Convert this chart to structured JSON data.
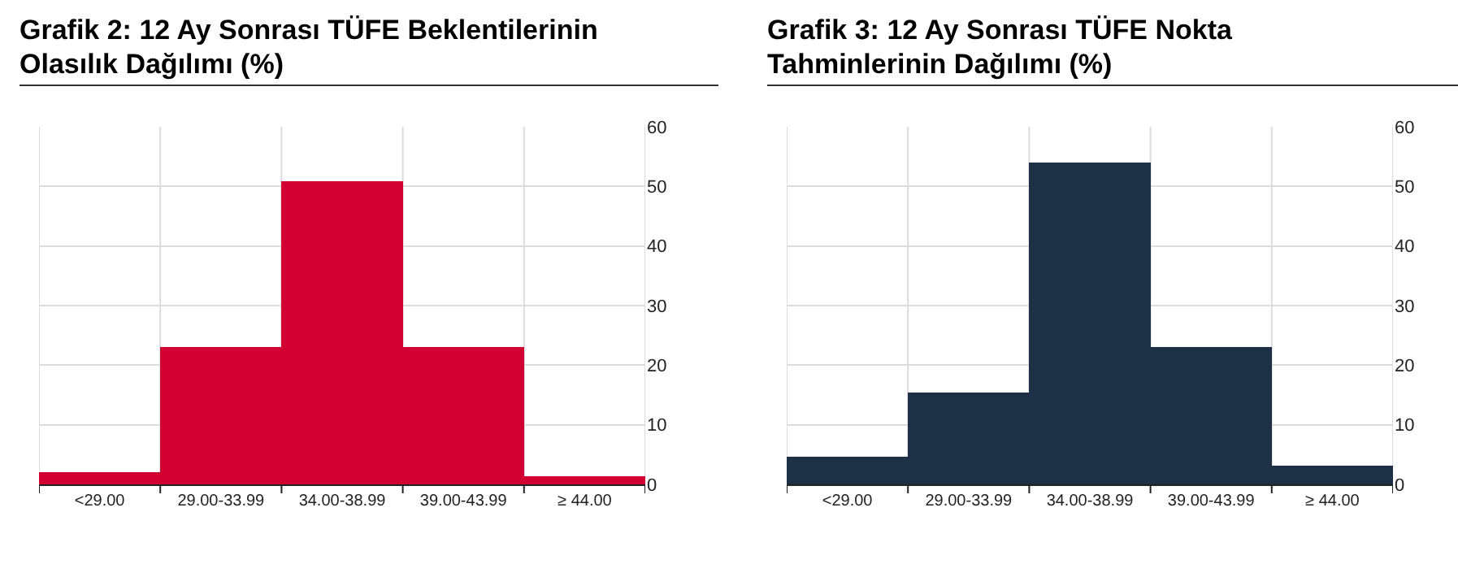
{
  "chart_data": [
    {
      "type": "bar",
      "title": "Grafik 2: 12 Ay Sonrası TÜFE Beklentilerinin Olasılık Dağılımı (%)",
      "categories": [
        "<29.00",
        "29.00-33.99",
        "34.00-38.99",
        "39.00-43.99",
        "≥ 44.00"
      ],
      "values": [
        2.1,
        23.0,
        50.9,
        23.0,
        1.4
      ],
      "color": "#d20032",
      "ylim": [
        0,
        60
      ],
      "yticks": [
        0,
        10,
        20,
        30,
        40,
        50,
        60
      ],
      "grid": true
    },
    {
      "type": "bar",
      "title": "Grafik 3: 12 Ay Sonrası TÜFE Nokta Tahminlerinin Dağılımı (%)",
      "categories": [
        "<29.00",
        "29.00-33.99",
        "34.00-38.99",
        "39.00-43.99",
        "≥ 44.00"
      ],
      "values": [
        4.6,
        15.4,
        54.0,
        23.0,
        3.1
      ],
      "color": "#1d3045",
      "ylim": [
        0,
        60
      ],
      "yticks": [
        0,
        10,
        20,
        30,
        40,
        50,
        60
      ],
      "grid": true
    }
  ]
}
